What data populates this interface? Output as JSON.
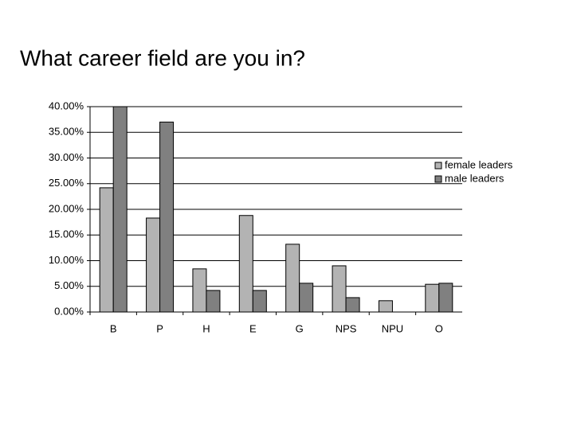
{
  "chart_data": {
    "type": "bar",
    "title": "What career field are you in?",
    "categories": [
      "B",
      "P",
      "H",
      "E",
      "G",
      "NPS",
      "NPU",
      "O"
    ],
    "series": [
      {
        "name": "female leaders",
        "color": "#b3b3b3",
        "values": [
          24.2,
          18.3,
          8.4,
          18.8,
          13.2,
          9.0,
          2.2,
          5.4
        ]
      },
      {
        "name": "male leaders",
        "color": "#808080",
        "values": [
          40.0,
          37.0,
          4.2,
          4.2,
          5.6,
          2.8,
          0,
          5.6
        ]
      }
    ],
    "ylim": [
      0,
      40
    ],
    "yticks": [
      {
        "value": 0,
        "label": "0.00%"
      },
      {
        "value": 5,
        "label": "5.00%"
      },
      {
        "value": 10,
        "label": "10.00%"
      },
      {
        "value": 15,
        "label": "15.00%"
      },
      {
        "value": 20,
        "label": "20.00%"
      },
      {
        "value": 25,
        "label": "25.00%"
      },
      {
        "value": 30,
        "label": "30.00%"
      },
      {
        "value": 35,
        "label": "35.00%"
      },
      {
        "value": 40,
        "label": "40.00%"
      }
    ],
    "grid": true,
    "legend": "right"
  }
}
